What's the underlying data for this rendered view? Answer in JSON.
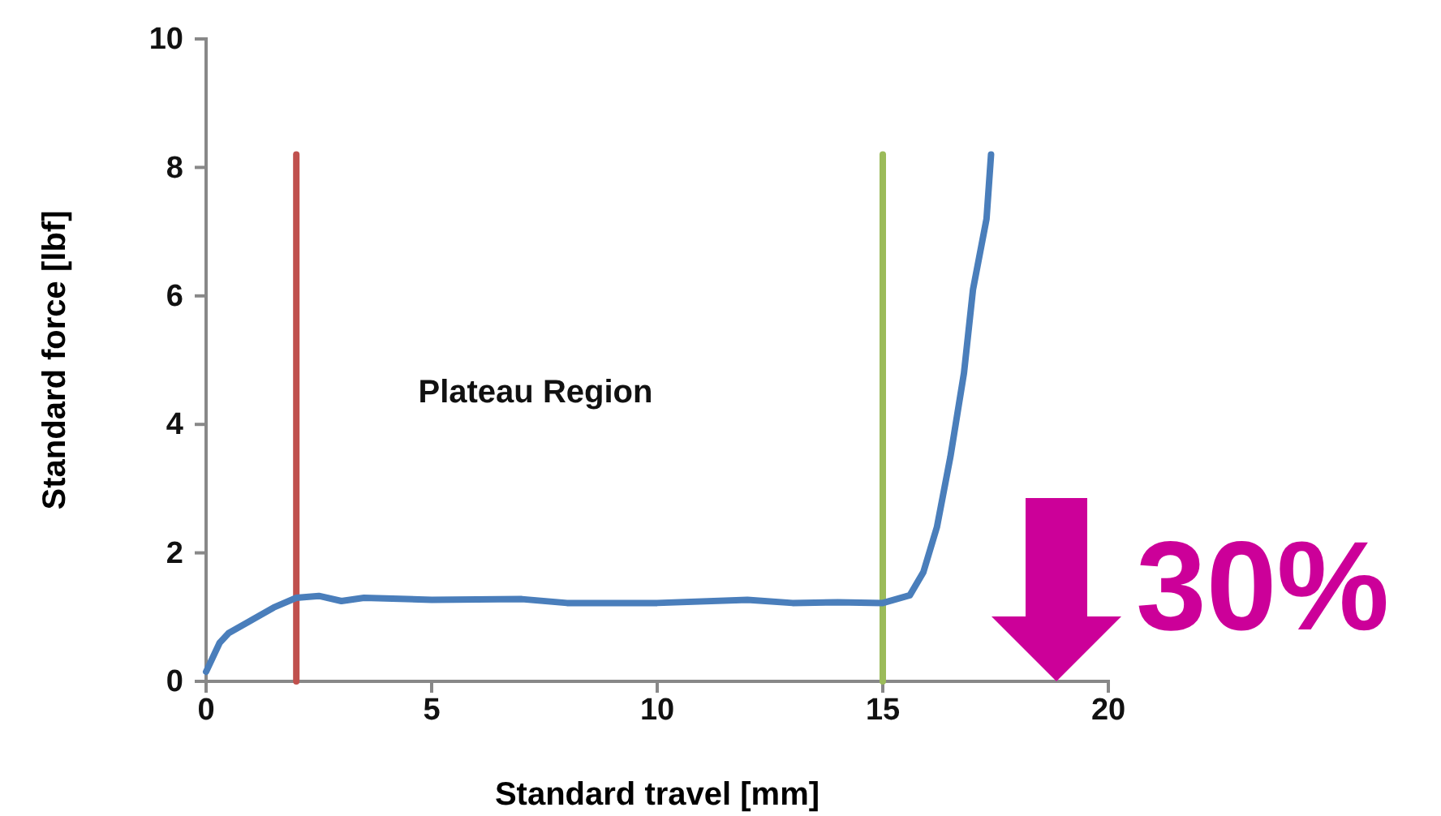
{
  "chart_data": {
    "type": "line",
    "xlabel": "Standard travel [mm]",
    "ylabel": "Standard force [lbf]",
    "xlim": [
      0,
      20
    ],
    "xticks": [
      0,
      5,
      10,
      15,
      20
    ],
    "ylim": [
      0,
      10
    ],
    "yticks": [
      0,
      2,
      4,
      6,
      8,
      10
    ],
    "grid": false,
    "series": [
      {
        "color": "#4a7ebb",
        "x": [
          0,
          0.3,
          0.5,
          1,
          1.5,
          2,
          2.5,
          3,
          3.5,
          5,
          7,
          8,
          10,
          12,
          13,
          14,
          15,
          15.6,
          15.9,
          16.2,
          16.5,
          16.8,
          17.0,
          17.3,
          17.4
        ],
        "values": [
          0.15,
          0.6,
          0.75,
          0.95,
          1.15,
          1.3,
          1.33,
          1.25,
          1.3,
          1.27,
          1.28,
          1.22,
          1.22,
          1.27,
          1.22,
          1.23,
          1.22,
          1.34,
          1.7,
          2.4,
          3.5,
          4.8,
          6.1,
          7.2,
          8.2
        ]
      },
      {
        "color": "#c0504d",
        "x": [
          2,
          2
        ],
        "values": [
          0,
          8.2
        ]
      },
      {
        "color": "#9bbb59",
        "x": [
          15,
          15
        ],
        "values": [
          0,
          8.2
        ]
      }
    ],
    "annotations": [
      "Plateau Region",
      "30%"
    ]
  }
}
